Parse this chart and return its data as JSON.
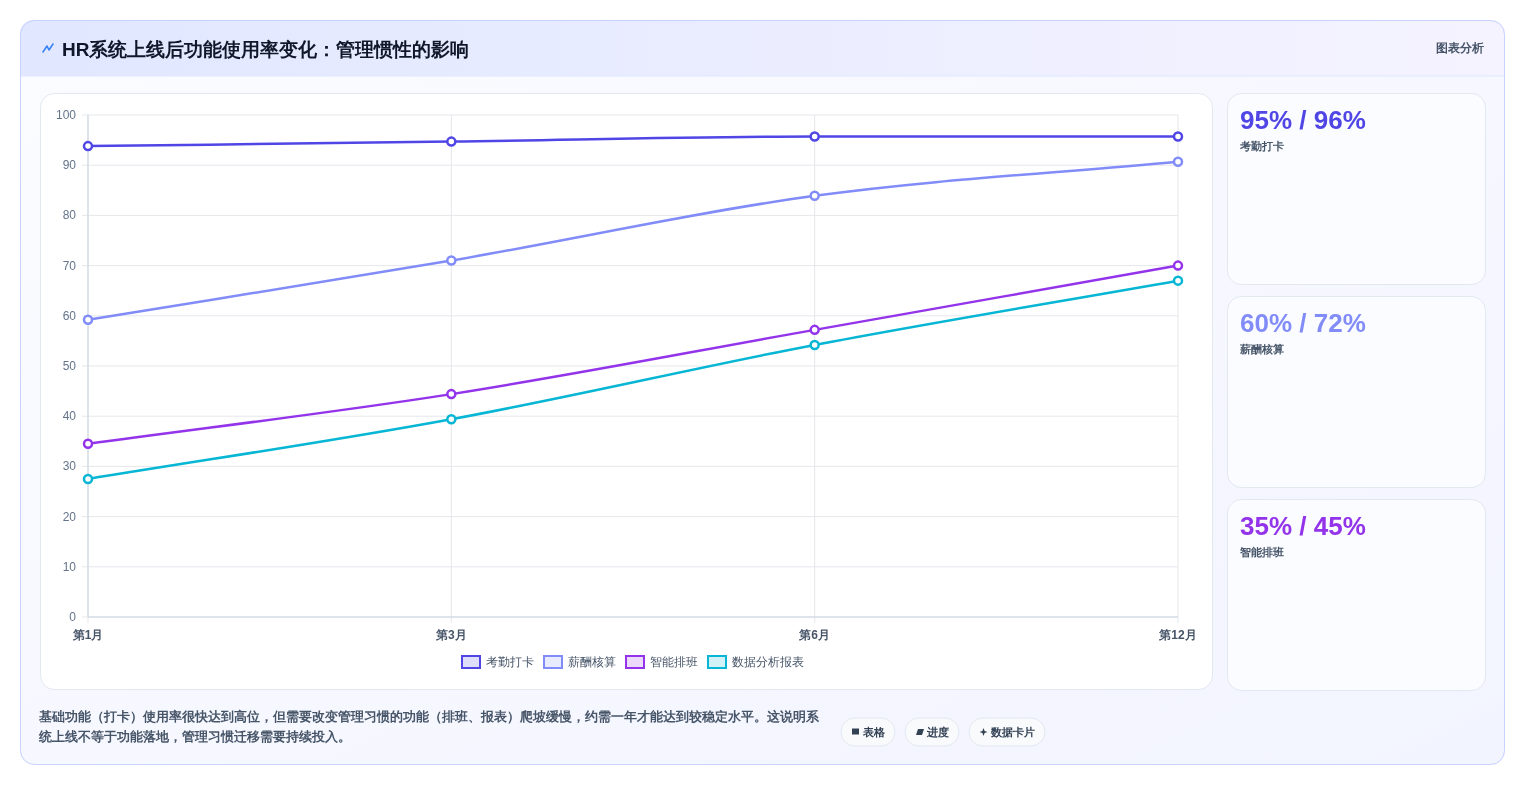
{
  "chart_data": [
    {
      "type": "line",
      "title": "HR系统上线后功能使用率变化：管理惯性的影响",
      "categories": [
        "第1月",
        "第3月",
        "第6月",
        "第12月"
      ],
      "series": [
        {
          "name": "考勤打卡",
          "color": "#4f46e5",
          "values": [
            93.8,
            94.7,
            95.7,
            95.7
          ]
        },
        {
          "name": "薪酬核算",
          "color": "#818cf8",
          "values": [
            59.2,
            71.0,
            83.9,
            90.7
          ]
        },
        {
          "name": "智能排班",
          "color": "#9333ea",
          "values": [
            34.5,
            44.4,
            57.2,
            70.0
          ]
        },
        {
          "name": "数据分析报表",
          "color": "#06b6d4",
          "values": [
            27.5,
            39.4,
            54.2,
            67.0
          ]
        }
      ],
      "ylim": [
        0,
        100
      ],
      "yticks": [
        0,
        10,
        20,
        30,
        40,
        50,
        60,
        70,
        80,
        90,
        100
      ],
      "grid": true,
      "legend": "bottom",
      "marker": "circle",
      "line_style": "solid",
      "annotations": [
        "图表分析",
        "基础功能（打卡）使用率很快达到高位，但需要改变管理习惯的功能（排班、报表）爬坡缓慢，约需一年才能达到较稳定水平。这说明系统上线不等于功能落地，管理习惯迁移需要持续投入。",
        "表格",
        "进度",
        "数据卡片"
      ]
    },
    {
      "type": "other",
      "annotations": [
        "95% / 96%",
        "考勤打卡",
        "60% / 72%",
        "薪酬核算",
        "35% / 45%",
        "智能排班"
      ],
      "colors": [
        "#4f46e5",
        "#818cf8",
        "#9333ea"
      ]
    }
  ]
}
